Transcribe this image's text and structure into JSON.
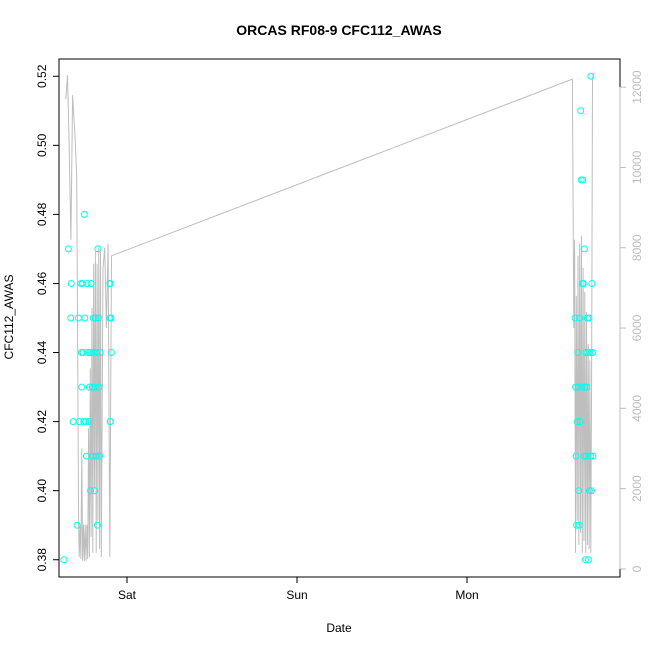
{
  "chart_data": {
    "type": "scatter",
    "title": "ORCAS RF08-9 CFC112_AWAS",
    "xlabel": "Date",
    "ylabel": "CFC112_AWAS",
    "x_unit": "days",
    "xlim": [
      -0.4,
      2.9
    ],
    "ylim": [
      0.375,
      0.525
    ],
    "y2lim": [
      -200,
      12700
    ],
    "x_ticks": [
      {
        "value": 0,
        "label": "Sat"
      },
      {
        "value": 1,
        "label": "Sun"
      },
      {
        "value": 2,
        "label": "Mon"
      }
    ],
    "y_ticks": [
      {
        "value": 0.38,
        "label": "0.38"
      },
      {
        "value": 0.4,
        "label": "0.40"
      },
      {
        "value": 0.42,
        "label": "0.42"
      },
      {
        "value": 0.44,
        "label": "0.44"
      },
      {
        "value": 0.46,
        "label": "0.46"
      },
      {
        "value": 0.48,
        "label": "0.48"
      },
      {
        "value": 0.5,
        "label": "0.50"
      },
      {
        "value": 0.52,
        "label": "0.52"
      }
    ],
    "y2_ticks": [
      {
        "value": 0,
        "label": "0"
      },
      {
        "value": 2000,
        "label": "2000"
      },
      {
        "value": 4000,
        "label": "4000"
      },
      {
        "value": 6000,
        "label": "6000"
      },
      {
        "value": 8000,
        "label": "8000"
      },
      {
        "value": 10000,
        "label": "10000"
      },
      {
        "value": 12000,
        "label": "12000"
      }
    ],
    "colors": {
      "points": "#00ffee",
      "altitude_line": "#bebebe",
      "axis": "#000000",
      "right_axis": "#bdbdbd"
    },
    "series": [
      {
        "axis": "left",
        "color": "#00ffee",
        "points": [
          [
            -0.371,
            0.38
          ],
          [
            -0.345,
            0.47
          ],
          [
            -0.328,
            0.46
          ],
          [
            -0.331,
            0.45
          ],
          [
            -0.317,
            0.42
          ],
          [
            -0.294,
            0.39
          ],
          [
            -0.286,
            0.45
          ],
          [
            -0.281,
            0.42
          ],
          [
            -0.271,
            0.46
          ],
          [
            -0.268,
            0.44
          ],
          [
            -0.266,
            0.43
          ],
          [
            -0.261,
            0.46
          ],
          [
            -0.258,
            0.44
          ],
          [
            -0.254,
            0.42
          ],
          [
            -0.251,
            0.48
          ],
          [
            -0.248,
            0.45
          ],
          [
            -0.242,
            0.42
          ],
          [
            -0.238,
            0.41
          ],
          [
            -0.235,
            0.46
          ],
          [
            -0.231,
            0.44
          ],
          [
            -0.225,
            0.42
          ],
          [
            -0.221,
            0.43
          ],
          [
            -0.218,
            0.44
          ],
          [
            -0.215,
            0.4
          ],
          [
            -0.211,
            0.46
          ],
          [
            -0.208,
            0.44
          ],
          [
            -0.205,
            0.43
          ],
          [
            -0.201,
            0.41
          ],
          [
            -0.198,
            0.45
          ],
          [
            -0.195,
            0.44
          ],
          [
            -0.191,
            0.4
          ],
          [
            -0.188,
            0.43
          ],
          [
            -0.185,
            0.45
          ],
          [
            -0.181,
            0.41
          ],
          [
            -0.178,
            0.44
          ],
          [
            -0.174,
            0.39
          ],
          [
            -0.171,
            0.47
          ],
          [
            -0.168,
            0.45
          ],
          [
            -0.165,
            0.43
          ],
          [
            -0.161,
            0.41
          ],
          [
            -0.158,
            0.44
          ],
          [
            -0.101,
            0.45
          ],
          [
            -0.098,
            0.42
          ],
          [
            -0.095,
            0.45
          ],
          [
            -0.092,
            0.44
          ],
          [
            -0.101,
            0.46
          ],
          [
            -0.098,
            0.46
          ],
          [
            -0.098,
            0.42
          ],
          [
            2.636,
            0.45
          ],
          [
            2.639,
            0.43
          ],
          [
            2.642,
            0.41
          ],
          [
            2.645,
            0.39
          ],
          [
            2.648,
            0.42
          ],
          [
            2.651,
            0.44
          ],
          [
            2.654,
            0.43
          ],
          [
            2.657,
            0.4
          ],
          [
            2.66,
            0.39
          ],
          [
            2.663,
            0.45
          ],
          [
            2.666,
            0.42
          ],
          [
            2.669,
            0.51
          ],
          [
            2.672,
            0.49
          ],
          [
            2.675,
            0.43
          ],
          [
            2.678,
            0.46
          ],
          [
            2.681,
            0.49
          ],
          [
            2.684,
            0.46
          ],
          [
            2.687,
            0.41
          ],
          [
            2.69,
            0.47
          ],
          [
            2.693,
            0.43
          ],
          [
            2.696,
            0.38
          ],
          [
            2.699,
            0.44
          ],
          [
            2.702,
            0.41
          ],
          [
            2.705,
            0.43
          ],
          [
            2.708,
            0.45
          ],
          [
            2.711,
            0.44
          ],
          [
            2.714,
            0.38
          ],
          [
            2.717,
            0.45
          ],
          [
            2.72,
            0.4
          ],
          [
            2.723,
            0.44
          ],
          [
            2.726,
            0.41
          ],
          [
            2.729,
            0.52
          ],
          [
            2.732,
            0.4
          ],
          [
            2.735,
            0.46
          ],
          [
            2.738,
            0.44
          ],
          [
            2.741,
            0.41
          ]
        ]
      },
      {
        "axis": "right",
        "color": "#bebebe",
        "points": [
          [
            -0.36,
            11700
          ],
          [
            -0.35,
            12300
          ],
          [
            -0.34,
            10500
          ],
          [
            -0.33,
            8200
          ],
          [
            -0.32,
            11800
          ],
          [
            -0.306,
            10800
          ],
          [
            -0.296,
            9800
          ],
          [
            -0.285,
            1200
          ],
          [
            -0.281,
            300
          ],
          [
            -0.276,
            1100
          ],
          [
            -0.271,
            250
          ],
          [
            -0.266,
            3000
          ],
          [
            -0.261,
            200
          ],
          [
            -0.256,
            1100
          ],
          [
            -0.251,
            200
          ],
          [
            -0.246,
            1100
          ],
          [
            -0.241,
            200
          ],
          [
            -0.236,
            1100
          ],
          [
            -0.231,
            250
          ],
          [
            -0.226,
            3500
          ],
          [
            -0.221,
            300
          ],
          [
            -0.216,
            5000
          ],
          [
            -0.211,
            800
          ],
          [
            -0.206,
            6500
          ],
          [
            -0.201,
            400
          ],
          [
            -0.196,
            7600
          ],
          [
            -0.191,
            2000
          ],
          [
            -0.186,
            7900
          ],
          [
            -0.181,
            400
          ],
          [
            -0.176,
            7600
          ],
          [
            -0.171,
            1200
          ],
          [
            -0.166,
            8000
          ],
          [
            -0.161,
            500
          ],
          [
            -0.156,
            7900
          ],
          [
            -0.151,
            300
          ],
          [
            -0.141,
            7500
          ],
          [
            -0.131,
            8000
          ],
          [
            -0.121,
            6000
          ],
          [
            -0.111,
            8100
          ],
          [
            -0.101,
            300
          ],
          [
            -0.091,
            7800
          ],
          [
            2.62,
            12200
          ],
          [
            2.628,
            6000
          ],
          [
            2.633,
            8200
          ],
          [
            2.638,
            400
          ],
          [
            2.643,
            6800
          ],
          [
            2.648,
            1200
          ],
          [
            2.653,
            7800
          ],
          [
            2.658,
            600
          ],
          [
            2.663,
            8100
          ],
          [
            2.668,
            900
          ],
          [
            2.673,
            8300
          ],
          [
            2.678,
            400
          ],
          [
            2.683,
            7500
          ],
          [
            2.688,
            700
          ],
          [
            2.693,
            6900
          ],
          [
            2.698,
            400
          ],
          [
            2.703,
            6400
          ],
          [
            2.708,
            600
          ],
          [
            2.713,
            5600
          ],
          [
            2.718,
            500
          ],
          [
            2.723,
            5200
          ],
          [
            2.728,
            400
          ],
          [
            2.733,
            4700
          ],
          [
            2.738,
            12200
          ],
          [
            2.741,
            12300
          ]
        ]
      }
    ]
  }
}
